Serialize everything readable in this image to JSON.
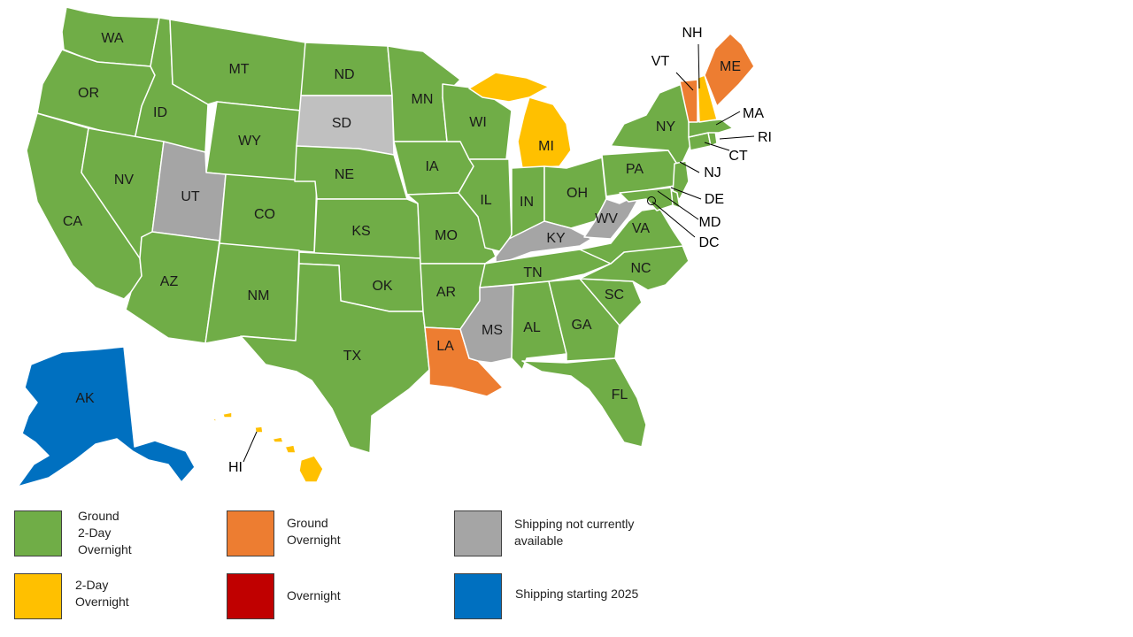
{
  "colors": {
    "green": "#70ad47",
    "orange": "#ed7d31",
    "yellow": "#ffc000",
    "gray": "#a5a5a5",
    "light_gray": "#c0c0c0",
    "red": "#c00000",
    "blue": "#0070c0",
    "border": "#ffffff"
  },
  "states": [
    {
      "abbr": "WA",
      "category": "green"
    },
    {
      "abbr": "OR",
      "category": "green"
    },
    {
      "abbr": "CA",
      "category": "green"
    },
    {
      "abbr": "ID",
      "category": "green"
    },
    {
      "abbr": "NV",
      "category": "green"
    },
    {
      "abbr": "MT",
      "category": "green"
    },
    {
      "abbr": "WY",
      "category": "green"
    },
    {
      "abbr": "UT",
      "category": "gray"
    },
    {
      "abbr": "AZ",
      "category": "green"
    },
    {
      "abbr": "CO",
      "category": "green"
    },
    {
      "abbr": "NM",
      "category": "green"
    },
    {
      "abbr": "ND",
      "category": "green"
    },
    {
      "abbr": "SD",
      "category": "light_gray"
    },
    {
      "abbr": "NE",
      "category": "green"
    },
    {
      "abbr": "KS",
      "category": "green"
    },
    {
      "abbr": "OK",
      "category": "green"
    },
    {
      "abbr": "TX",
      "category": "green"
    },
    {
      "abbr": "MN",
      "category": "green"
    },
    {
      "abbr": "IA",
      "category": "green"
    },
    {
      "abbr": "MO",
      "category": "green"
    },
    {
      "abbr": "AR",
      "category": "green"
    },
    {
      "abbr": "LA",
      "category": "orange"
    },
    {
      "abbr": "WI",
      "category": "green"
    },
    {
      "abbr": "IL",
      "category": "green"
    },
    {
      "abbr": "MI",
      "category": "yellow"
    },
    {
      "abbr": "IN",
      "category": "green"
    },
    {
      "abbr": "OH",
      "category": "green"
    },
    {
      "abbr": "KY",
      "category": "gray"
    },
    {
      "abbr": "TN",
      "category": "green"
    },
    {
      "abbr": "MS",
      "category": "gray"
    },
    {
      "abbr": "AL",
      "category": "green"
    },
    {
      "abbr": "GA",
      "category": "green"
    },
    {
      "abbr": "FL",
      "category": "green"
    },
    {
      "abbr": "SC",
      "category": "green"
    },
    {
      "abbr": "NC",
      "category": "green"
    },
    {
      "abbr": "VA",
      "category": "green"
    },
    {
      "abbr": "WV",
      "category": "gray"
    },
    {
      "abbr": "PA",
      "category": "green"
    },
    {
      "abbr": "NY",
      "category": "green"
    },
    {
      "abbr": "NJ",
      "category": "green"
    },
    {
      "abbr": "DE",
      "category": "green"
    },
    {
      "abbr": "MD",
      "category": "green"
    },
    {
      "abbr": "DC",
      "category": "green"
    },
    {
      "abbr": "CT",
      "category": "green"
    },
    {
      "abbr": "RI",
      "category": "green"
    },
    {
      "abbr": "MA",
      "category": "green"
    },
    {
      "abbr": "VT",
      "category": "orange"
    },
    {
      "abbr": "NH",
      "category": "yellow"
    },
    {
      "abbr": "ME",
      "category": "orange"
    },
    {
      "abbr": "AK",
      "category": "blue"
    },
    {
      "abbr": "HI",
      "category": "yellow"
    }
  ],
  "legend": [
    {
      "color": "green",
      "lines": [
        "Ground",
        "2-Day",
        "Overnight"
      ]
    },
    {
      "color": "orange",
      "lines": [
        "Ground",
        "Overnight"
      ]
    },
    {
      "color": "gray",
      "lines": [
        "Shipping not currently",
        "available"
      ]
    },
    {
      "color": "yellow",
      "lines": [
        "2-Day",
        "Overnight"
      ]
    },
    {
      "color": "red",
      "lines": [
        "Overnight"
      ]
    },
    {
      "color": "blue",
      "lines": [
        "Shipping starting 2025"
      ]
    }
  ]
}
